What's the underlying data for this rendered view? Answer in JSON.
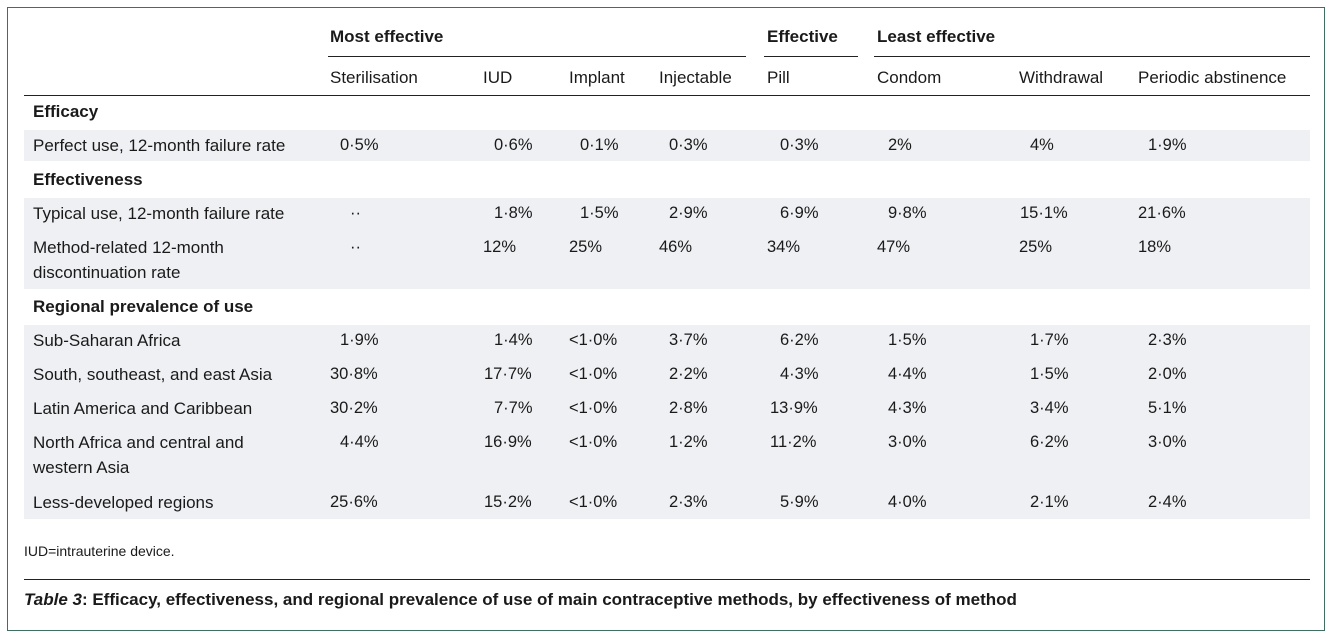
{
  "table": {
    "groups": [
      "Most effective",
      "Effective",
      "Least effective"
    ],
    "columns": [
      "Sterilisation",
      "IUD",
      "Implant",
      "Injectable",
      "Pill",
      "Condom",
      "Withdrawal",
      "Periodic abstinence"
    ],
    "sections": [
      {
        "title": "Efficacy",
        "rows": [
          {
            "label": "Perfect use, 12-month failure rate",
            "cells": [
              "0·5%",
              "0·6%",
              "0·1%",
              "0·3%",
              "0·3%",
              "2%",
              "4%",
              "1·9%"
            ]
          }
        ]
      },
      {
        "title": "Effectiveness",
        "rows": [
          {
            "label": "Typical use, 12-month failure rate",
            "cells": [
              "··",
              "1·8%",
              "1·5%",
              "2·9%",
              "6·9%",
              "9·8%",
              "15·1%",
              "21·6%"
            ]
          },
          {
            "label": "Method-related 12-month discontinuation rate",
            "cells": [
              "··",
              "12%",
              "25%",
              "46%",
              "34%",
              "47%",
              "25%",
              "18%"
            ]
          }
        ]
      },
      {
        "title": "Regional prevalence of use",
        "rows": [
          {
            "label": "Sub-Saharan Africa",
            "cells": [
              "1·9%",
              "1·4%",
              "<1·0%",
              "3·7%",
              "6·2%",
              "1·5%",
              "1·7%",
              "2·3%"
            ]
          },
          {
            "label": "South, southeast, and east Asia",
            "cells": [
              "30·8%",
              "17·7%",
              "<1·0%",
              "2·2%",
              "4·3%",
              "4·4%",
              "1·5%",
              "2·0%"
            ]
          },
          {
            "label": "Latin America and Caribbean",
            "cells": [
              "30·2%",
              "7·7%",
              "<1·0%",
              "2·8%",
              "13·9%",
              "4·3%",
              "3·4%",
              "5·1%"
            ]
          },
          {
            "label": "North Africa and central and western Asia",
            "cells": [
              "4·4%",
              "16·9%",
              "<1·0%",
              "1·2%",
              "11·2%",
              "3·0%",
              "6·2%",
              "3·0%"
            ]
          },
          {
            "label": "Less-developed regions",
            "cells": [
              "25·6%",
              "15·2%",
              "<1·0%",
              "2·3%",
              "5·9%",
              "4·0%",
              "2·1%",
              "2·4%"
            ]
          }
        ]
      }
    ]
  },
  "footnote": "IUD=intrauterine device.",
  "caption": {
    "label": "Table 3",
    "text": ": Efficacy, effectiveness, and regional prevalence of use of main contraceptive methods, by effectiveness of method"
  }
}
